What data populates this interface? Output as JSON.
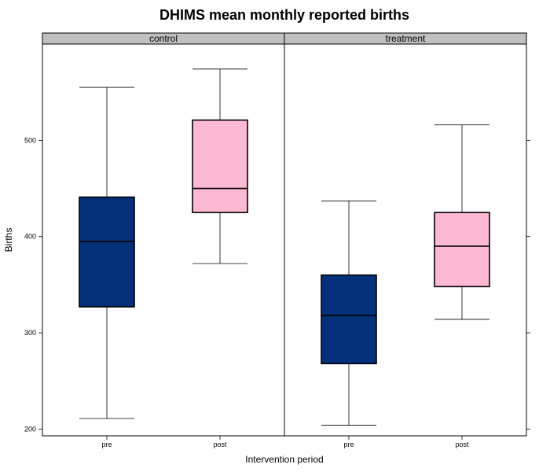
{
  "chart_data": {
    "type": "boxplot",
    "title": "DHIMS mean monthly reported births",
    "xlabel": "Intervention period",
    "ylabel": "Births",
    "ylim": [
      193,
      600
    ],
    "yticks": [
      200,
      300,
      400,
      500
    ],
    "categories": [
      "pre",
      "post"
    ],
    "colors": {
      "pre": "#04307a",
      "post": "#fdb9d4",
      "strip": "#c0c0c0"
    },
    "panels": [
      {
        "label": "control",
        "boxes": [
          {
            "category": "pre",
            "min": 211,
            "q1": 327,
            "median": 395,
            "q3": 441,
            "max": 555
          },
          {
            "category": "post",
            "min": 372,
            "q1": 425,
            "median": 450,
            "q3": 521,
            "max": 574
          }
        ]
      },
      {
        "label": "treatment",
        "boxes": [
          {
            "category": "pre",
            "min": 204,
            "q1": 268,
            "median": 318,
            "q3": 360,
            "max": 437
          },
          {
            "category": "post",
            "min": 314,
            "q1": 348,
            "median": 390,
            "q3": 425,
            "max": 516
          }
        ]
      }
    ]
  }
}
